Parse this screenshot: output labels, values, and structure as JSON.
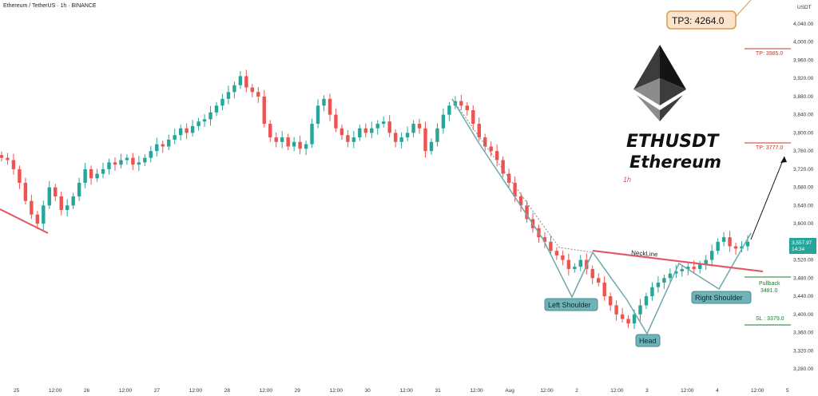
{
  "header": {
    "symbol": "Ethereum / TetherUS · 1h · BINANCE"
  },
  "chart_data": {
    "type": "candlestick",
    "currency_label": "USDT",
    "ylim": [
      3260,
      4080
    ],
    "y_ticks": [
      4040,
      4000,
      3960,
      3920,
      3880,
      3840,
      3800,
      3760,
      3720,
      3680,
      3640,
      3600,
      3560,
      3520,
      3480,
      3440,
      3400,
      3360,
      3320,
      3280
    ],
    "y_tick_labels": [
      "4,040.00",
      "4,000.00",
      "3,960.00",
      "3,920.00",
      "3,880.00",
      "3,840.00",
      "3,800.00",
      "3,760.00",
      "3,720.00",
      "3,680.00",
      "3,640.00",
      "3,600.00",
      "3,560.00",
      "3,520.00",
      "3,480.00",
      "3,440.00",
      "3,400.00",
      "3,360.00",
      "3,320.00",
      "3,280.00"
    ],
    "x_tick_labels": [
      "25",
      "12:00",
      "26",
      "12:00",
      "27",
      "12:00",
      "28",
      "12:00",
      "29",
      "12:00",
      "30",
      "12:00",
      "31",
      "12:00",
      "Aug",
      "12:00",
      "2",
      "12:00",
      "3",
      "12:00",
      "4",
      "12:00",
      "5"
    ],
    "current_price": "3,557.97",
    "countdown": "14:34",
    "pattern_labels": {
      "left_shoulder": "Left Shoulder",
      "head": "Head",
      "right_shoulder": "Right Shoulder",
      "neckline": "NeckLine"
    },
    "targets": {
      "tp3": "TP3: 4264.0",
      "tp2": "TP: 3985.0",
      "tp1": "TP: 3777.0",
      "pullback": "Pullback",
      "pullback_value": "3481.0",
      "sl": "SL : 3379.0"
    },
    "levels": {
      "tp2": 3985,
      "tp1": 3777,
      "pullback": 3481,
      "sl": 3379
    },
    "title_line1": "ETHUSDT",
    "title_line2": "Ethereum",
    "timeframe": "1h",
    "colors": {
      "up": "#26a69a",
      "down": "#ef5350",
      "neckline": "#e05561",
      "tp": "#c0392b",
      "sl": "#1e7a2e",
      "pattern": "#6fa8ab",
      "price_tag": "#26a69a"
    },
    "price_path": [
      3745,
      3740,
      3720,
      3690,
      3650,
      3620,
      3600,
      3640,
      3680,
      3660,
      3630,
      3640,
      3660,
      3690,
      3720,
      3700,
      3710,
      3720,
      3735,
      3730,
      3740,
      3745,
      3730,
      3735,
      3745,
      3760,
      3775,
      3770,
      3785,
      3795,
      3810,
      3800,
      3815,
      3825,
      3830,
      3845,
      3860,
      3875,
      3890,
      3905,
      3925,
      3900,
      3890,
      3880,
      3820,
      3790,
      3780,
      3790,
      3770,
      3780,
      3765,
      3775,
      3820,
      3860,
      3875,
      3840,
      3810,
      3795,
      3780,
      3790,
      3810,
      3800,
      3810,
      3820,
      3825,
      3800,
      3780,
      3790,
      3800,
      3820,
      3810,
      3760,
      3780,
      3810,
      3840,
      3860,
      3870,
      3860,
      3850,
      3820,
      3790,
      3770,
      3760,
      3740,
      3710,
      3690,
      3660,
      3640,
      3610,
      3590,
      3570,
      3560,
      3540,
      3530,
      3520,
      3500,
      3505,
      3520,
      3500,
      3480,
      3470,
      3440,
      3420,
      3400,
      3390,
      3380,
      3400,
      3420,
      3440,
      3460,
      3470,
      3480,
      3490,
      3495,
      3500,
      3505,
      3500,
      3510,
      3520,
      3540,
      3560,
      3570,
      3550,
      3545,
      3550,
      3560
    ]
  }
}
